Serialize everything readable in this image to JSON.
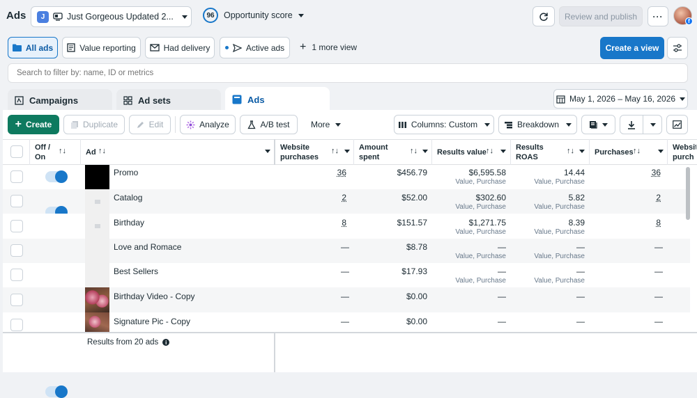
{
  "header": {
    "title": "Ads",
    "account_initial": "J",
    "account_name": "Just Gorgeous Updated 2...",
    "score": "96",
    "score_label": "Opportunity score",
    "review_label": "Review and publish",
    "more_label": "···"
  },
  "views": {
    "items": [
      {
        "label": "All ads"
      },
      {
        "label": "Value reporting"
      },
      {
        "label": "Had delivery"
      },
      {
        "label": "Active ads"
      }
    ],
    "more_views": "1 more view",
    "create_view": "Create a view"
  },
  "search": {
    "placeholder": "Search to filter by: name, ID or metrics"
  },
  "tabs": [
    {
      "label": "Campaigns"
    },
    {
      "label": "Ad sets"
    },
    {
      "label": "Ads"
    }
  ],
  "date_range": "May 1, 2026 – May 16, 2026",
  "toolbar": {
    "create": "Create",
    "duplicate": "Duplicate",
    "edit": "Edit",
    "analyze": "Analyze",
    "ab_test": "A/B test",
    "more": "More",
    "columns": "Columns: Custom",
    "breakdown": "Breakdown"
  },
  "table": {
    "headers": {
      "offon": "Off / On",
      "ad": "Ad",
      "website_purchases": "Website purchases",
      "amount_spent": "Amount spent",
      "results_value": "Results value",
      "results_roas": "Results ROAS",
      "purchases": "Purchases",
      "website_purch2": "Website purch"
    },
    "rows": [
      {
        "name": "Promo",
        "website_purchases": "36",
        "amount_spent": "$456.79",
        "results_value": "$6,595.58",
        "results_value_sub": "Value, Purchase",
        "roas": "14.44",
        "roas_sub": "Value, Purchase",
        "purchases": "36"
      },
      {
        "name": "Catalog",
        "website_purchases": "2",
        "amount_spent": "$52.00",
        "results_value": "$302.60",
        "results_value_sub": "Value, Purchase",
        "roas": "5.82",
        "roas_sub": "Value, Purchase",
        "purchases": "2"
      },
      {
        "name": "Birthday",
        "website_purchases": "8",
        "amount_spent": "$151.57",
        "results_value": "$1,271.75",
        "results_value_sub": "Value, Purchase",
        "roas": "8.39",
        "roas_sub": "Value, Purchase",
        "purchases": "8"
      },
      {
        "name": "Love and Romace",
        "website_purchases": "—",
        "amount_spent": "$8.78",
        "results_value": "—",
        "results_value_sub": "Value, Purchase",
        "roas": "—",
        "roas_sub": "Value, Purchase",
        "purchases": "—"
      },
      {
        "name": "Best Sellers",
        "website_purchases": "—",
        "amount_spent": "$17.93",
        "results_value": "—",
        "results_value_sub": "Value, Purchase",
        "roas": "—",
        "roas_sub": "Value, Purchase",
        "purchases": "—"
      },
      {
        "name": "Birthday Video - Copy",
        "website_purchases": "—",
        "amount_spent": "$0.00",
        "results_value": "—",
        "results_value_sub": "",
        "roas": "—",
        "roas_sub": "",
        "purchases": "—"
      },
      {
        "name": "Signature Pic - Copy",
        "website_purchases": "—",
        "amount_spent": "$0.00",
        "results_value": "—",
        "results_value_sub": "",
        "roas": "—",
        "roas_sub": "",
        "purchases": "—"
      }
    ],
    "footer": "Results from 20 ads"
  },
  "colors": {
    "accent": "#1877c9",
    "create_green": "#0e7a5f",
    "badge_blue": "#4a7fe0"
  }
}
